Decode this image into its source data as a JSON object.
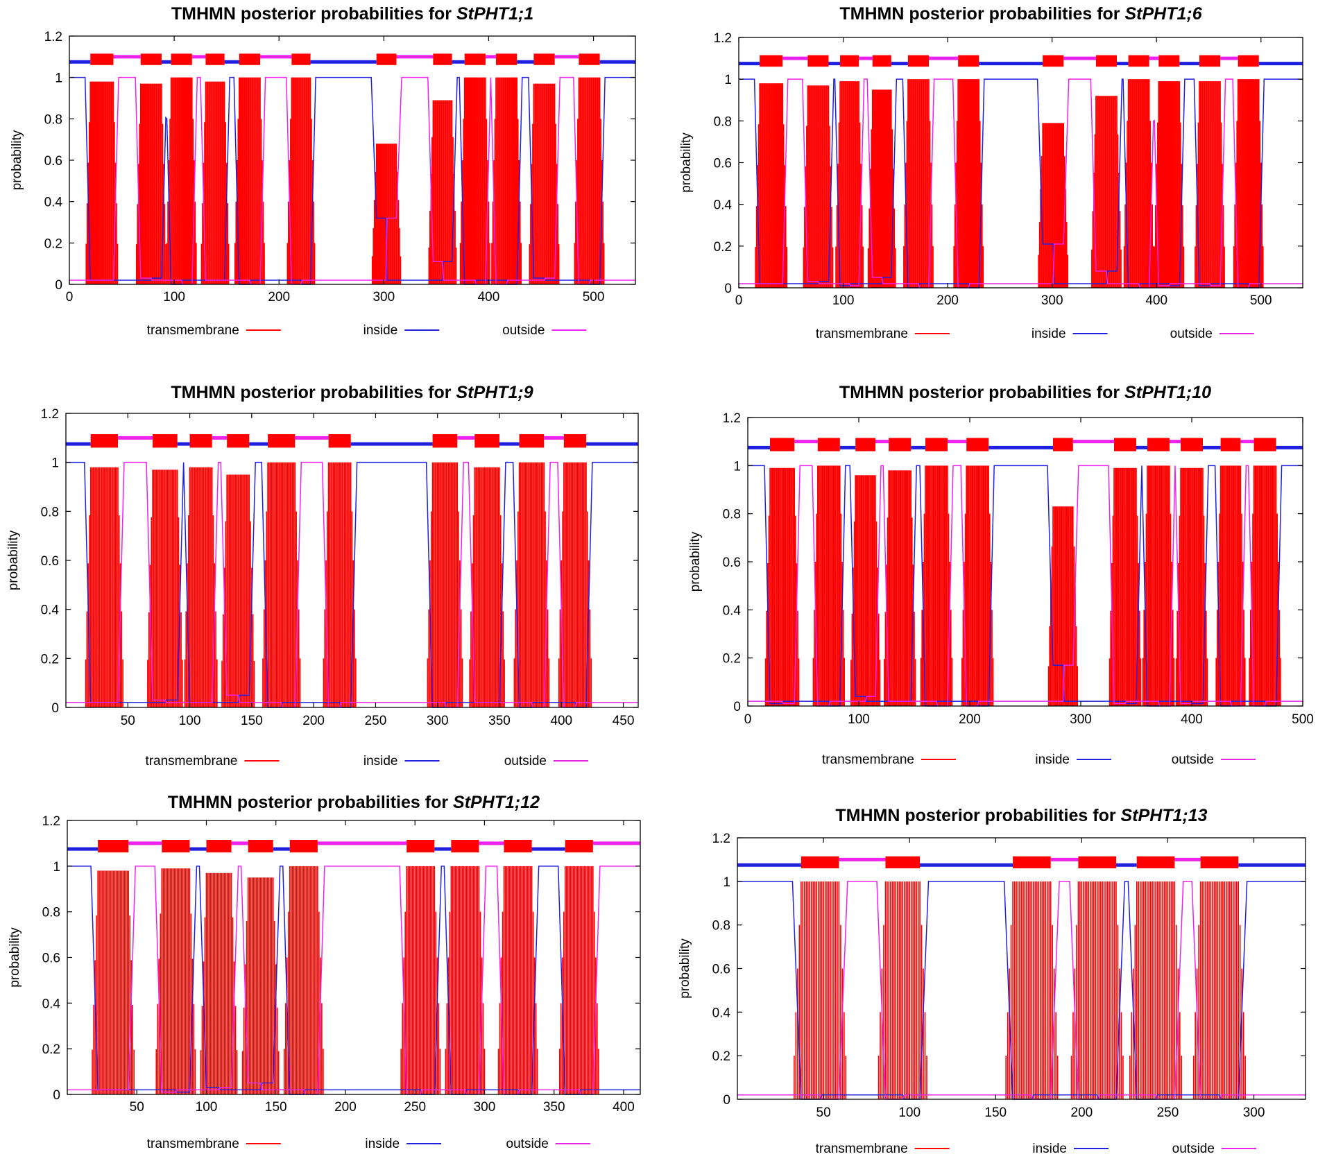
{
  "figure": {
    "title_prefix": "TMHMN posterior probabilities for",
    "ylabel": "probability",
    "legend": [
      "transmembrane",
      "inside",
      "outside"
    ],
    "colors": {
      "transmembrane": "#ff0000",
      "inside": "#2020e0",
      "outside": "#ee22ee",
      "axis": "#000000"
    }
  },
  "chart_data": [
    {
      "type": "area",
      "title": "TMHMN posterior probabilities for StPHT1;1",
      "protein": "StPHT1;1",
      "xlabel": "",
      "ylabel": "probability",
      "xlim": [
        0,
        540
      ],
      "ylim": [
        0,
        1.2
      ],
      "xticks": [
        0,
        100,
        200,
        300,
        400,
        500
      ],
      "yticks": [
        0,
        0.2,
        0.4,
        0.6,
        0.8,
        1,
        1.2
      ],
      "ytick_labels": [
        "0",
        "0.2",
        "0.4",
        "0.6",
        "0.8",
        "1",
        "1.2"
      ],
      "legend": [
        "transmembrane",
        "inside",
        "outside"
      ],
      "tm_helices": [
        [
          20,
          42,
          0.98
        ],
        [
          68,
          88,
          0.97
        ],
        [
          97,
          117,
          1.0
        ],
        [
          130,
          148,
          0.98
        ],
        [
          162,
          182,
          1.0
        ],
        [
          212,
          230,
          1.0
        ],
        [
          293,
          312,
          0.68
        ],
        [
          347,
          365,
          0.89
        ],
        [
          377,
          397,
          1.0
        ],
        [
          407,
          427,
          1.0
        ],
        [
          443,
          463,
          0.97
        ],
        [
          486,
          506,
          1.0
        ]
      ],
      "start_side": "inside"
    },
    {
      "type": "area",
      "title": "TMHMN posterior probabilities for StPHT1;6",
      "protein": "StPHT1;6",
      "xlabel": "",
      "ylabel": "probability",
      "xlim": [
        0,
        540
      ],
      "ylim": [
        0,
        1.2
      ],
      "xticks": [
        0,
        100,
        200,
        300,
        400,
        500
      ],
      "yticks": [
        0,
        0.2,
        0.4,
        0.6,
        0.8,
        1,
        1.2
      ],
      "ytick_labels": [
        "0",
        "0.2",
        "0.4",
        "0.6",
        "0.8",
        "1",
        "1.2"
      ],
      "legend": [
        "transmembrane",
        "inside",
        "outside"
      ],
      "tm_helices": [
        [
          20,
          42,
          0.98
        ],
        [
          66,
          86,
          0.97
        ],
        [
          97,
          115,
          0.99
        ],
        [
          128,
          146,
          0.95
        ],
        [
          162,
          182,
          1.0
        ],
        [
          210,
          230,
          1.0
        ],
        [
          291,
          311,
          0.79
        ],
        [
          342,
          362,
          0.92
        ],
        [
          373,
          393,
          1.0
        ],
        [
          402,
          422,
          0.99
        ],
        [
          441,
          461,
          0.99
        ],
        [
          478,
          498,
          1.0
        ]
      ],
      "start_side": "inside"
    },
    {
      "type": "area",
      "title": "TMHMN posterior probabilities for StPHT1;9",
      "protein": "StPHT1;9",
      "xlabel": "",
      "ylabel": "probability",
      "xlim": [
        0,
        462
      ],
      "ylim": [
        0,
        1.2
      ],
      "xticks": [
        50,
        100,
        150,
        200,
        250,
        300,
        350,
        400,
        450
      ],
      "yticks": [
        0,
        0.2,
        0.4,
        0.6,
        0.8,
        1,
        1.2
      ],
      "ytick_labels": [
        "0",
        "0.2",
        "0.4",
        "0.6",
        "0.8",
        "1",
        "1.2"
      ],
      "legend": [
        "transmembrane",
        "inside",
        "outside"
      ],
      "tm_helices": [
        [
          20,
          42,
          0.98
        ],
        [
          70,
          90,
          0.97
        ],
        [
          100,
          118,
          0.98
        ],
        [
          130,
          148,
          0.95
        ],
        [
          163,
          185,
          1.0
        ],
        [
          212,
          230,
          1.0
        ],
        [
          296,
          316,
          1.0
        ],
        [
          330,
          350,
          0.98
        ],
        [
          366,
          386,
          1.0
        ],
        [
          402,
          420,
          1.0
        ]
      ],
      "start_side": "inside"
    },
    {
      "type": "area",
      "title": "TMHMN posterior probabilities for StPHT1;10",
      "protein": "StPHT1;10",
      "xlabel": "",
      "ylabel": "probability",
      "xlim": [
        0,
        500
      ],
      "ylim": [
        0,
        1.2
      ],
      "xticks": [
        0,
        100,
        200,
        300,
        400,
        500
      ],
      "yticks": [
        0,
        0.2,
        0.4,
        0.6,
        0.8,
        1,
        1.2
      ],
      "ytick_labels": [
        "0",
        "0.2",
        "0.4",
        "0.6",
        "0.8",
        "1",
        "1.2"
      ],
      "legend": [
        "transmembrane",
        "inside",
        "outside"
      ],
      "tm_helices": [
        [
          20,
          42,
          0.99
        ],
        [
          63,
          83,
          1.0
        ],
        [
          97,
          115,
          0.96
        ],
        [
          127,
          147,
          0.98
        ],
        [
          160,
          180,
          1.0
        ],
        [
          197,
          217,
          1.0
        ],
        [
          275,
          293,
          0.83
        ],
        [
          330,
          350,
          0.99
        ],
        [
          360,
          380,
          1.0
        ],
        [
          390,
          410,
          0.99
        ],
        [
          426,
          444,
          1.0
        ],
        [
          456,
          476,
          1.0
        ]
      ],
      "start_side": "inside"
    },
    {
      "type": "area",
      "title": "TMHMN posterior probabilities for StPHT1;12",
      "protein": "StPHT1;12",
      "xlabel": "",
      "ylabel": "probability",
      "xlim": [
        0,
        412
      ],
      "ylim": [
        0,
        1.2
      ],
      "xticks": [
        50,
        100,
        150,
        200,
        250,
        300,
        350,
        400
      ],
      "yticks": [
        0,
        0.2,
        0.4,
        0.6,
        0.8,
        1,
        1.2
      ],
      "ytick_labels": [
        "0",
        "0.2",
        "0.4",
        "0.6",
        "0.8",
        "1",
        "1.2"
      ],
      "legend": [
        "transmembrane",
        "inside",
        "outside"
      ],
      "tm_helices": [
        [
          22,
          44,
          0.98
        ],
        [
          68,
          88,
          0.99
        ],
        [
          100,
          118,
          0.97
        ],
        [
          130,
          148,
          0.95
        ],
        [
          160,
          180,
          1.0
        ],
        [
          244,
          264,
          1.0
        ],
        [
          276,
          296,
          1.0
        ],
        [
          314,
          334,
          1.0
        ],
        [
          358,
          378,
          1.0
        ]
      ],
      "start_side": "inside"
    },
    {
      "type": "area",
      "title": "TMHMN posterior probabilities for StPHT1;13",
      "protein": "StPHT1;13",
      "xlabel": "",
      "ylabel": "probability",
      "xlim": [
        0,
        330
      ],
      "ylim": [
        0,
        1.2
      ],
      "xticks": [
        50,
        100,
        150,
        200,
        250,
        300
      ],
      "yticks": [
        0,
        0.2,
        0.4,
        0.6,
        0.8,
        1,
        1.2
      ],
      "ytick_labels": [
        "0",
        "0.2",
        "0.4",
        "0.6",
        "0.8",
        "1",
        "1.2"
      ],
      "legend": [
        "transmembrane",
        "inside",
        "outside"
      ],
      "tm_helices": [
        [
          37,
          59,
          1.0
        ],
        [
          86,
          106,
          1.0
        ],
        [
          160,
          182,
          1.0
        ],
        [
          198,
          220,
          1.0
        ],
        [
          232,
          254,
          1.0
        ],
        [
          269,
          291,
          1.0
        ]
      ],
      "start_side": "inside"
    }
  ]
}
